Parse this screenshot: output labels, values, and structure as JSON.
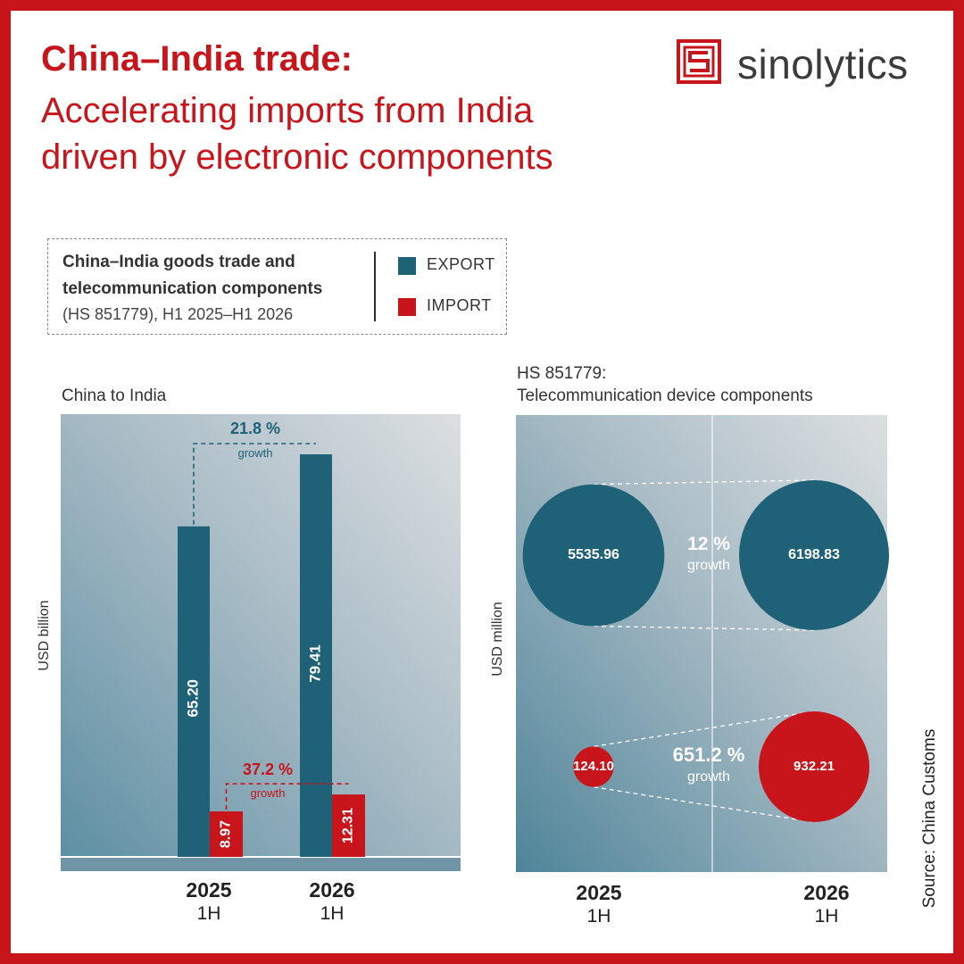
{
  "title": {
    "bold": "China–India trade:",
    "line1": "Accelerating imports from India",
    "line2": "driven by electronic components"
  },
  "brand": {
    "name": "sinolytics"
  },
  "legend": {
    "title_line1": "China–India goods trade and",
    "title_line2": "telecommunication components",
    "subtitle": "(HS 851779), H1 2025–H1 2026",
    "export_label": "EXPORT",
    "import_label": "IMPORT"
  },
  "colors": {
    "export": "#1f6278",
    "import": "#c8151b",
    "accent": "#c8151b"
  },
  "source": "Source: China Customs",
  "chart_data": [
    {
      "type": "bar",
      "title": "China to India",
      "ylabel": "USD billion",
      "categories": [
        {
          "year": "2025",
          "half": "1H"
        },
        {
          "year": "2026",
          "half": "1H"
        }
      ],
      "series": [
        {
          "name": "EXPORT",
          "values": [
            65.2,
            79.41
          ]
        },
        {
          "name": "IMPORT",
          "values": [
            8.97,
            12.31
          ]
        }
      ],
      "annotations": [
        {
          "series": "EXPORT",
          "text": "21.8 %",
          "sub": "growth"
        },
        {
          "series": "IMPORT",
          "text": "37.2 %",
          "sub": "growth"
        }
      ]
    },
    {
      "type": "bubble",
      "title_line1": "HS 851779:",
      "title_line2": "Telecommunication device components",
      "ylabel": "USD million",
      "categories": [
        {
          "year": "2025",
          "half": "1H"
        },
        {
          "year": "2026",
          "half": "1H"
        }
      ],
      "series": [
        {
          "name": "EXPORT",
          "values": [
            5535.96,
            6198.83
          ]
        },
        {
          "name": "IMPORT",
          "values": [
            124.1,
            932.21
          ]
        }
      ],
      "annotations": [
        {
          "series": "EXPORT",
          "text": "12 %",
          "sub": "growth"
        },
        {
          "series": "IMPORT",
          "text": "651.2 %",
          "sub": "growth"
        }
      ]
    }
  ]
}
